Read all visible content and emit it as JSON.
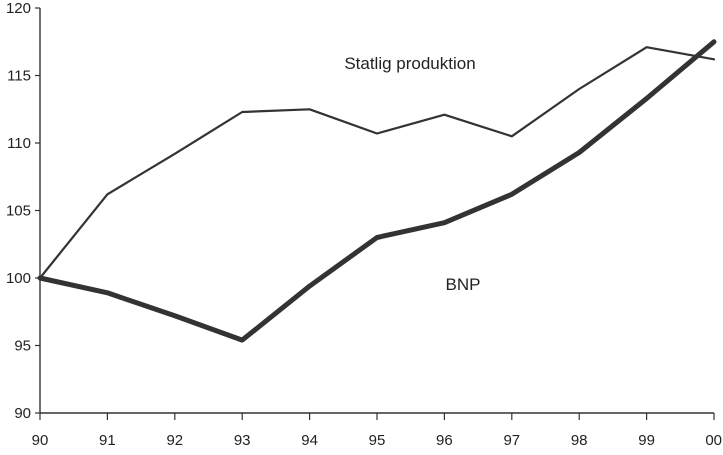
{
  "chart_data": {
    "type": "line",
    "title": "",
    "xlabel": "",
    "ylabel": "",
    "x": [
      "90",
      "91",
      "92",
      "93",
      "94",
      "95",
      "96",
      "97",
      "98",
      "99",
      "00"
    ],
    "ylim": [
      90,
      120
    ],
    "yticks": [
      90,
      95,
      100,
      105,
      110,
      115,
      120
    ],
    "grid": false,
    "series": [
      {
        "name": "Statlig produktion",
        "values": [
          100,
          106.2,
          109.2,
          112.3,
          112.5,
          110.7,
          112.1,
          110.5,
          114,
          117.1,
          116.2
        ],
        "color": "#333333"
      },
      {
        "name": "BNP",
        "values": [
          100,
          98.9,
          97.2,
          95.4,
          99.4,
          103,
          104.1,
          106.2,
          109.3,
          113.3,
          117.5
        ],
        "color": "#333333"
      }
    ]
  }
}
